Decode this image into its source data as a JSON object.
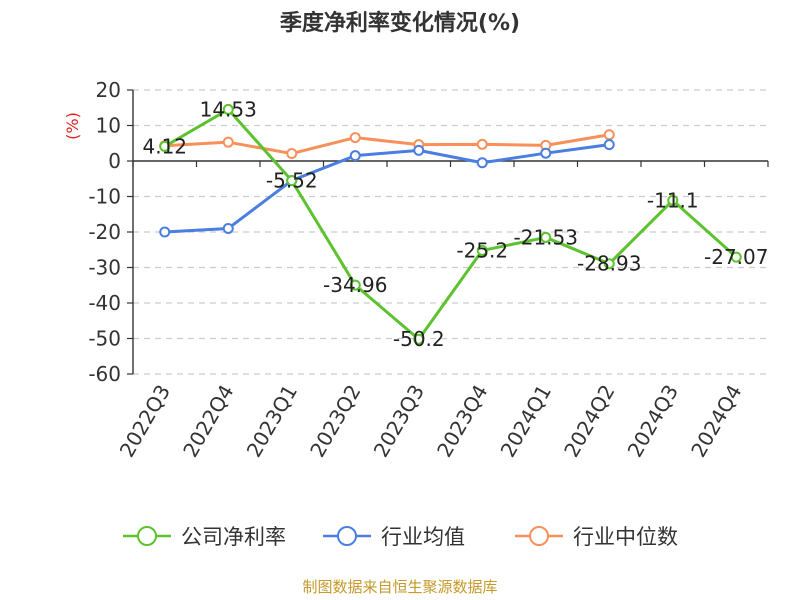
{
  "chart_data": {
    "type": "line",
    "title": "季度净利率变化情况(%)",
    "ylabel": "(%)",
    "ylim": [
      -60,
      20
    ],
    "yticks": [
      20,
      10,
      0,
      -10,
      -20,
      -30,
      -40,
      -50,
      -60
    ],
    "categories": [
      "2022Q3",
      "2022Q4",
      "2023Q1",
      "2023Q2",
      "2023Q3",
      "2023Q4",
      "2024Q1",
      "2024Q2",
      "2024Q3",
      "2024Q4"
    ],
    "grid": true,
    "legend_position": "bottom",
    "series": [
      {
        "name": "公司净利率",
        "color": "#5cc22e",
        "values": [
          4.12,
          14.53,
          -5.52,
          -34.96,
          -50.2,
          -25.2,
          -21.53,
          -28.93,
          -11.1,
          -27.07
        ],
        "labels": [
          "4.12",
          "14.53",
          "-5.52",
          "-34.96",
          "-50.2",
          "-25.2",
          "-21.53",
          "-28.93",
          "-11.1",
          "-27.07"
        ]
      },
      {
        "name": "行业均值",
        "color": "#4a7ee0",
        "values": [
          -20.0,
          -19.0,
          -5.5,
          1.5,
          3.0,
          -0.5,
          2.2,
          4.6,
          null,
          null
        ]
      },
      {
        "name": "行业中位数",
        "color": "#f7905a",
        "values": [
          4.3,
          5.3,
          2.1,
          6.6,
          4.6,
          4.7,
          4.4,
          7.4,
          null,
          null
        ]
      }
    ]
  },
  "footer": "制图数据来自恒生聚源数据库"
}
